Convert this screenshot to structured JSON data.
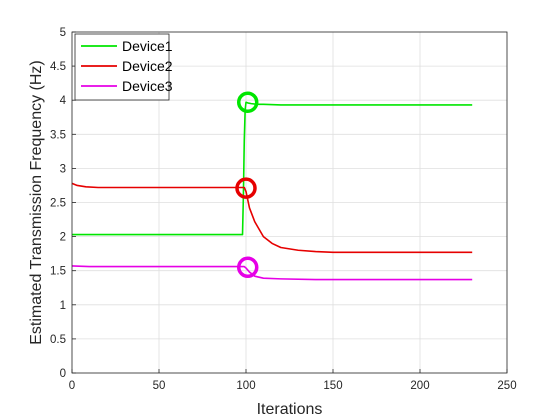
{
  "chart_data": {
    "type": "line",
    "title": "",
    "xlabel": "Iterations",
    "ylabel": "Estimated Transmission Frequency (Hz)",
    "xlim": [
      0,
      250
    ],
    "ylim": [
      0,
      5
    ],
    "xticks": [
      0,
      50,
      100,
      150,
      200,
      250
    ],
    "yticks": [
      0,
      0.5,
      1,
      1.5,
      2,
      2.5,
      3,
      3.5,
      4,
      4.5,
      5
    ],
    "grid": true,
    "legend_position": "top-left",
    "series": [
      {
        "name": "Device1",
        "color": "#00e600",
        "x": [
          0,
          5,
          20,
          50,
          90,
          98,
          98.5,
          99,
          99.5,
          100,
          101,
          103,
          106,
          110,
          120,
          150,
          200,
          230
        ],
        "y": [
          2.03,
          2.03,
          2.03,
          2.03,
          2.03,
          2.03,
          2.6,
          3.4,
          3.85,
          3.97,
          3.96,
          3.95,
          3.94,
          3.94,
          3.93,
          3.93,
          3.93,
          3.93
        ],
        "marker": {
          "x": 101,
          "y": 3.97
        }
      },
      {
        "name": "Device2",
        "color": "#e60000",
        "x": [
          0,
          3,
          8,
          15,
          30,
          60,
          90,
          99,
          100,
          102,
          105,
          110,
          115,
          120,
          130,
          140,
          150,
          170,
          200,
          230
        ],
        "y": [
          2.78,
          2.75,
          2.73,
          2.72,
          2.72,
          2.72,
          2.72,
          2.72,
          2.66,
          2.42,
          2.22,
          2.0,
          1.9,
          1.84,
          1.8,
          1.78,
          1.77,
          1.77,
          1.77,
          1.77
        ],
        "marker": {
          "x": 100,
          "y": 2.71
        }
      },
      {
        "name": "Device3",
        "color": "#e600e6",
        "x": [
          0,
          10,
          30,
          60,
          90,
          99,
          100,
          102,
          105,
          110,
          120,
          140,
          170,
          200,
          230
        ],
        "y": [
          1.57,
          1.56,
          1.56,
          1.56,
          1.56,
          1.56,
          1.54,
          1.48,
          1.42,
          1.39,
          1.38,
          1.37,
          1.37,
          1.37,
          1.37
        ],
        "marker": {
          "x": 101,
          "y": 1.55
        }
      }
    ]
  }
}
